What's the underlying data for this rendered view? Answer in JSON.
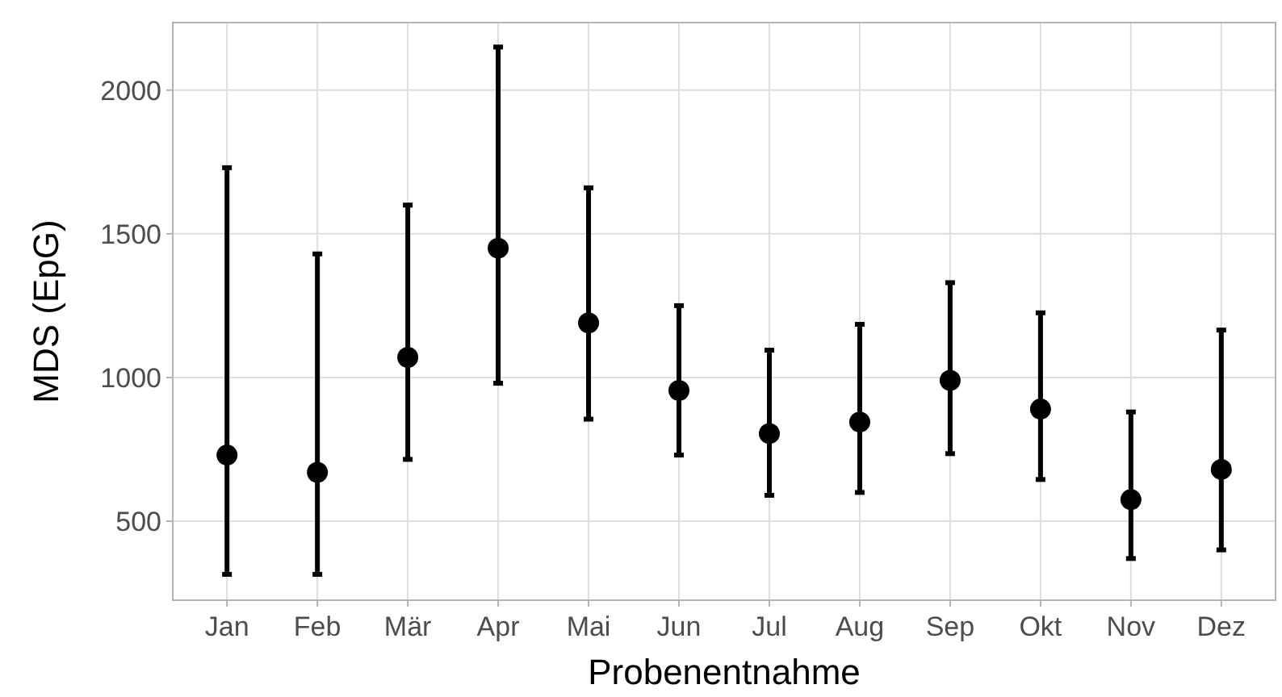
{
  "chart_data": {
    "type": "scatter",
    "xlabel": "Probenentnahme",
    "ylabel": "MDS (EpG)",
    "categories": [
      "Jan",
      "Feb",
      "Mär",
      "Apr",
      "Mai",
      "Jun",
      "Jul",
      "Aug",
      "Sep",
      "Okt",
      "Nov",
      "Dez"
    ],
    "series": [
      {
        "color": "#000000",
        "values": [
          730,
          670,
          1070,
          1450,
          1190,
          955,
          805,
          845,
          990,
          890,
          575,
          680
        ],
        "errors": [
          [
            315,
            1730
          ],
          [
            315,
            1430
          ],
          [
            715,
            1600
          ],
          [
            980,
            2150
          ],
          [
            855,
            1660
          ],
          [
            730,
            1250
          ],
          [
            590,
            1095
          ],
          [
            600,
            1185
          ],
          [
            735,
            1330
          ],
          [
            645,
            1225
          ],
          [
            370,
            880
          ],
          [
            400,
            1165
          ]
        ]
      }
    ],
    "ylim": [
      225,
      2235
    ],
    "yticks": [
      500,
      1000,
      1500,
      2000
    ],
    "grid": true,
    "marker": "circle"
  }
}
